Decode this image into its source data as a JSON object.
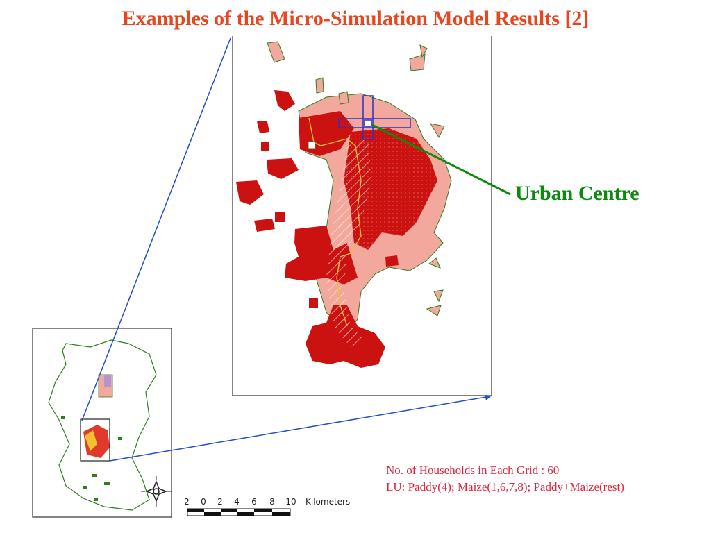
{
  "title": "Examples of the Micro-Simulation Model Results [2]",
  "callout": {
    "label": "Urban Centre"
  },
  "notes": [
    "No. of Households in Each Grid : 60",
    "LU: Paddy(4); Maize(1,6,7,8); Paddy+Maize(rest)"
  ],
  "scale_bar": {
    "ticks": [
      "2",
      "0",
      "2",
      "4",
      "6",
      "8",
      "10"
    ],
    "unit": "Kilometers"
  },
  "colors": {
    "title": "#e8461e",
    "callout": "#0b8a0b",
    "notes": "#e0233b",
    "leader": "#1f4fd0",
    "boundary": "#2e7d1e",
    "dark_red": "#cc1111",
    "light_red": "#ee8a80",
    "pale_pink": "#f4b3a8",
    "river": "#e7c23a",
    "grid_box": "#2a30c8"
  },
  "icons": [
    "compass-rose-icon"
  ]
}
